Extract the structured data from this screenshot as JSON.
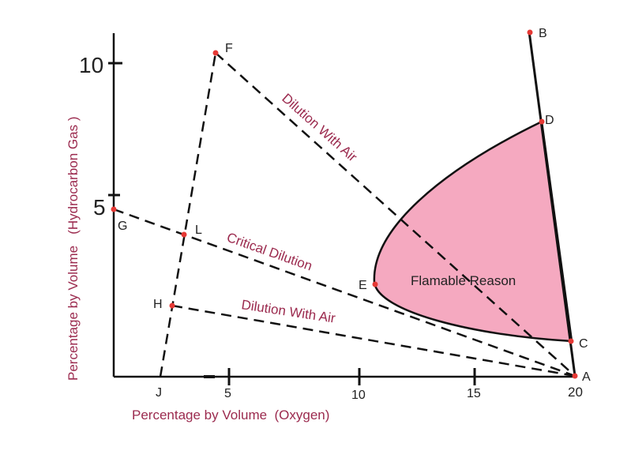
{
  "colors": {
    "region_fill": "#f5a9c0",
    "point": "#e53935",
    "label_text": "#9b2a4e",
    "line": "#111111"
  },
  "axes": {
    "x_title": "Percentage by Volume  (Oxygen)",
    "y_title": "Percentage by Volume   (Hydrocarbon Gas )",
    "x_ticks": [
      "5",
      "10",
      "15",
      "20"
    ],
    "y_ticks": [
      "10",
      "5"
    ]
  },
  "points": {
    "A": "A",
    "B": "B",
    "C": "C",
    "D": "D",
    "E": "E",
    "F": "F",
    "G": "G",
    "H": "H",
    "J": "J",
    "L": "L"
  },
  "lines": {
    "dilution_upper": "Dilution With Air",
    "critical": "Critical Dilution",
    "dilution_lower": "Dilution With Air"
  },
  "region": {
    "label": "Flamable Reason"
  }
}
